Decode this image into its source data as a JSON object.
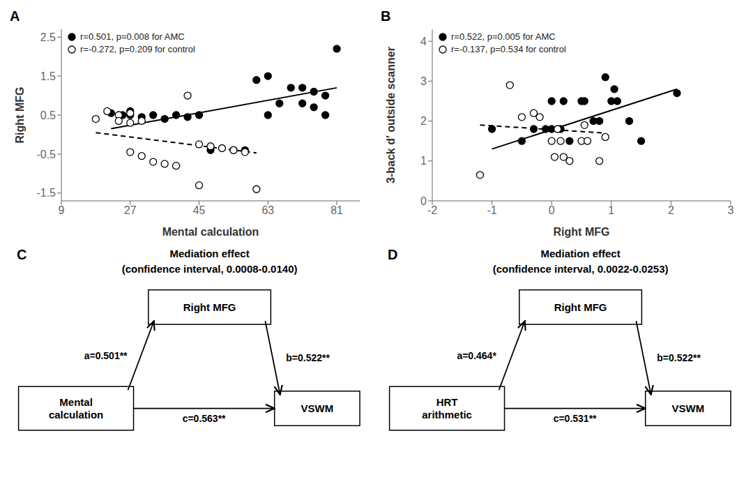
{
  "chart_data": [
    {
      "type": "scatter",
      "annotations": [
        "A"
      ],
      "x_label": "Mental calculation",
      "y_label": "Right MFG",
      "xlim": [
        9,
        87
      ],
      "ylim": [
        -1.7,
        2.7
      ],
      "xticks": [
        9,
        27,
        45,
        63,
        81
      ],
      "yticks": [
        -1.5,
        -0.5,
        0.5,
        1.5,
        2.5
      ],
      "grid": false,
      "legend": "upper left",
      "series": [
        {
          "name": "r=0.501, p=0.008 for AMC",
          "type": "scatter",
          "marker": "filled",
          "color": "#000000",
          "x": [
            22,
            25,
            27,
            27,
            30,
            33,
            36,
            39,
            42,
            45,
            48,
            54,
            57,
            60,
            63,
            63,
            66,
            69,
            72,
            72,
            75,
            75,
            78,
            78,
            81
          ],
          "values": [
            0.55,
            0.5,
            0.6,
            0.5,
            0.45,
            0.5,
            0.4,
            0.5,
            0.45,
            0.5,
            -0.4,
            -0.4,
            -0.4,
            1.4,
            0.5,
            1.5,
            0.8,
            1.2,
            1.2,
            0.8,
            1.1,
            0.7,
            1.0,
            0.5,
            2.2
          ]
        },
        {
          "name": "r=-0.272, p=0.209 for control",
          "type": "scatter",
          "marker": "open",
          "color": "#000000",
          "x": [
            18,
            21,
            24,
            24,
            27,
            27,
            27,
            30,
            30,
            33,
            36,
            39,
            42,
            45,
            45,
            48,
            51,
            54,
            57,
            60
          ],
          "values": [
            0.4,
            0.6,
            0.5,
            0.35,
            0.55,
            0.3,
            -0.45,
            0.35,
            -0.55,
            -0.7,
            -0.75,
            -0.8,
            1.0,
            -1.3,
            -0.25,
            -0.3,
            -0.35,
            -0.4,
            -0.45,
            -1.4
          ]
        },
        {
          "type": "line",
          "line_style": "solid",
          "color": "#000000",
          "x": [
            22,
            81
          ],
          "values": [
            0.15,
            1.2
          ]
        },
        {
          "type": "line",
          "line_style": "dashed",
          "color": "#000000",
          "x": [
            18,
            60
          ],
          "values": [
            0.05,
            -0.47
          ]
        }
      ]
    },
    {
      "type": "scatter",
      "annotations": [
        "B"
      ],
      "x_label": "Right MFG",
      "y_label": "3-back d′ outside scanner",
      "xlim": [
        -2,
        3
      ],
      "ylim": [
        0,
        4.3
      ],
      "xticks": [
        -2,
        -1,
        0,
        1,
        2,
        3
      ],
      "yticks": [
        0,
        1,
        2,
        3,
        4
      ],
      "grid": false,
      "legend": "upper left",
      "series": [
        {
          "name": "r=0.522, p=0.005 for AMC",
          "type": "scatter",
          "marker": "filled",
          "color": "#000000",
          "x": [
            -1.0,
            -0.5,
            -0.3,
            -0.1,
            0.0,
            0.0,
            0.15,
            0.2,
            0.3,
            0.5,
            0.55,
            0.7,
            0.8,
            0.9,
            1.0,
            1.05,
            1.1,
            1.3,
            1.5,
            2.1
          ],
          "values": [
            1.8,
            1.5,
            1.8,
            1.8,
            1.8,
            2.5,
            1.8,
            2.5,
            1.5,
            2.5,
            2.5,
            2.0,
            2.0,
            3.1,
            2.5,
            2.8,
            2.5,
            2.0,
            1.5,
            2.7
          ]
        },
        {
          "name": "r=-0.137, p=0.534 for control",
          "type": "scatter",
          "marker": "open",
          "color": "#000000",
          "x": [
            -1.2,
            -0.7,
            -0.5,
            -0.3,
            -0.2,
            0.0,
            0.05,
            0.1,
            0.15,
            0.2,
            0.3,
            0.5,
            0.55,
            0.6,
            0.8,
            0.9
          ],
          "values": [
            0.65,
            2.9,
            2.1,
            2.2,
            2.1,
            1.5,
            1.1,
            1.8,
            1.5,
            1.1,
            1.0,
            1.5,
            1.9,
            1.5,
            1.0,
            1.6
          ]
        },
        {
          "type": "line",
          "line_style": "solid",
          "color": "#000000",
          "x": [
            -1.0,
            2.1
          ],
          "values": [
            1.3,
            2.8
          ]
        },
        {
          "type": "line",
          "line_style": "dashed",
          "color": "#000000",
          "x": [
            -1.2,
            0.9
          ],
          "values": [
            1.9,
            1.7
          ]
        }
      ]
    },
    {
      "type": "diagram",
      "annotations": [
        "C"
      ],
      "title": "Mediation effect",
      "subtitle": "(confidence interval, 0.0008-0.0140)",
      "nodes": [
        "Mental\ncalculation",
        "Right MFG",
        "VSWM"
      ],
      "edges": [
        {
          "from": "Mental\ncalculation",
          "to": "Right MFG",
          "label": "a=0.501**"
        },
        {
          "from": "Right MFG",
          "to": "VSWM",
          "label": "b=0.522**"
        },
        {
          "from": "Mental\ncalculation",
          "to": "VSWM",
          "label": "c=0.563**"
        }
      ]
    },
    {
      "type": "diagram",
      "annotations": [
        "D"
      ],
      "title": "Mediation effect",
      "subtitle": "(confidence interval, 0.0022-0.0253)",
      "nodes": [
        "HRT\narithmetic",
        "Right MFG",
        "VSWM"
      ],
      "edges": [
        {
          "from": "HRT\narithmetic",
          "to": "Right MFG",
          "label": "a=0.464*"
        },
        {
          "from": "Right MFG",
          "to": "VSWM",
          "label": "b=0.522**"
        },
        {
          "from": "HRT\narithmetic",
          "to": "VSWM",
          "label": "c=0.531**"
        }
      ]
    }
  ]
}
